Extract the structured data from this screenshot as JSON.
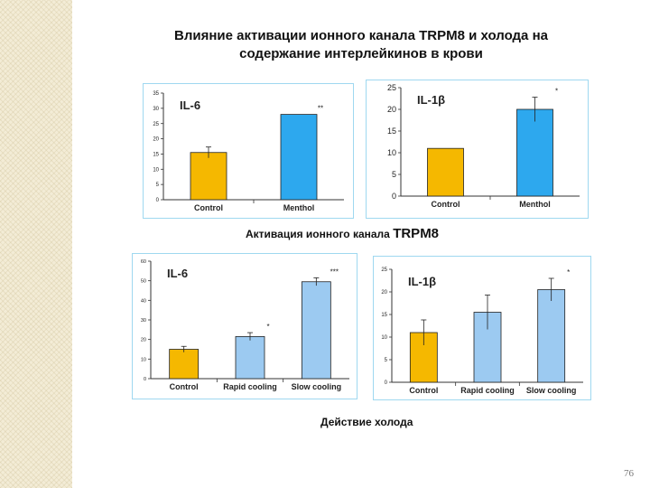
{
  "title": {
    "line1": "Влияние активации ионного канала TRPM8 и холода на",
    "line2": "содержание интерлейкинов в крови"
  },
  "captions": {
    "top_prefix": "Активация ионного канала",
    "top_suffix": "TRPM8",
    "bottom": "Действие холода"
  },
  "page_number": "76",
  "colors": {
    "control": "#f5b800",
    "menthol": "#2da8ee",
    "cooling": "#9ccaf1"
  },
  "chart_data": [
    {
      "type": "bar",
      "title": "IL-6",
      "categories": [
        "Control",
        "Menthol"
      ],
      "values": [
        15.5,
        28
      ],
      "errors": [
        1.8,
        0
      ],
      "annotations": [
        "",
        "**"
      ],
      "yticks": [
        0,
        5,
        10,
        15,
        20,
        25,
        30,
        35
      ],
      "ylim": [
        0,
        35
      ],
      "grid": false
    },
    {
      "type": "bar",
      "title": "IL-1β",
      "categories": [
        "Control",
        "Menthol"
      ],
      "values": [
        11,
        20
      ],
      "errors": [
        0,
        2.8
      ],
      "annotations": [
        "",
        "*"
      ],
      "yticks": [
        0,
        5,
        10,
        15,
        20,
        25
      ],
      "ylim": [
        0,
        25
      ],
      "grid": false
    },
    {
      "type": "bar",
      "title": "IL-6",
      "categories": [
        "Control",
        "Rapid cooling",
        "Slow cooling"
      ],
      "values": [
        15,
        21.5,
        49.5
      ],
      "errors": [
        1.5,
        2,
        2
      ],
      "annotations": [
        "",
        "*",
        "***"
      ],
      "yticks": [
        0,
        10,
        20,
        30,
        40,
        50,
        60
      ],
      "ylim": [
        0,
        60
      ],
      "grid": false
    },
    {
      "type": "bar",
      "title": "IL-1β",
      "categories": [
        "Control",
        "Rapid cooling",
        "Slow cooling"
      ],
      "values": [
        11,
        15.5,
        20.5
      ],
      "errors": [
        2.8,
        3.8,
        2.5
      ],
      "annotations": [
        "",
        "",
        "*"
      ],
      "yticks": [
        0,
        5,
        10,
        15,
        20,
        25
      ],
      "ylim": [
        0,
        25
      ],
      "grid": false
    }
  ]
}
